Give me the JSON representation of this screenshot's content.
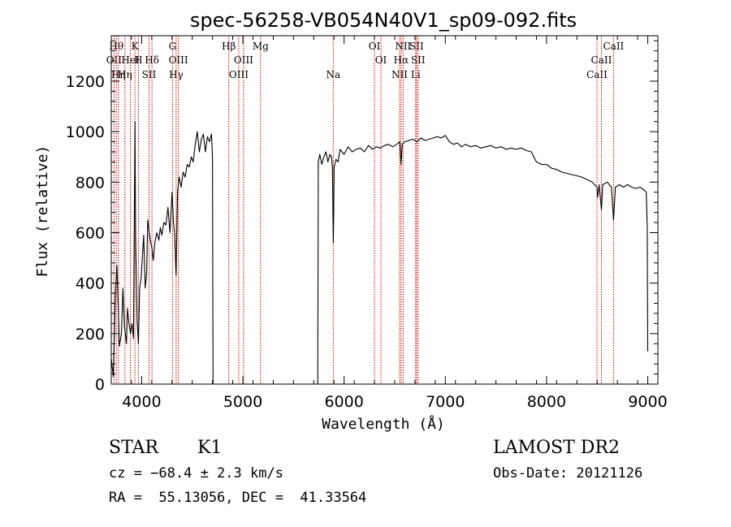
{
  "chart_data": {
    "type": "line",
    "title": "spec-56258-VB054N40V1_sp09-092.fits",
    "xlabel": "Wavelength (Å)",
    "ylabel": "Flux (relative)",
    "xlim": [
      3700,
      9100
    ],
    "ylim": [
      0,
      1380
    ],
    "x_ticks": [
      4000,
      5000,
      6000,
      7000,
      8000,
      9000
    ],
    "x_tick_labels": [
      "4000",
      "5000",
      "6000",
      "7000",
      "8000",
      "9000"
    ],
    "y_ticks": [
      0,
      200,
      400,
      600,
      800,
      1000,
      1200
    ],
    "y_tick_labels": [
      "0",
      "200",
      "400",
      "600",
      "800",
      "1000",
      "1200"
    ],
    "grid": false,
    "line_color": "#000000",
    "marker_color": "#cc0000",
    "spectrum": [
      [
        3700,
        100
      ],
      [
        3720,
        30
      ],
      [
        3740,
        350
      ],
      [
        3755,
        470
      ],
      [
        3770,
        300
      ],
      [
        3780,
        150
      ],
      [
        3800,
        200
      ],
      [
        3815,
        380
      ],
      [
        3830,
        230
      ],
      [
        3850,
        160
      ],
      [
        3860,
        300
      ],
      [
        3875,
        240
      ],
      [
        3890,
        200
      ],
      [
        3905,
        240
      ],
      [
        3920,
        180
      ],
      [
        3934,
        1040
      ],
      [
        3940,
        600
      ],
      [
        3955,
        250
      ],
      [
        3968,
        160
      ],
      [
        3980,
        380
      ],
      [
        3995,
        420
      ],
      [
        4010,
        520
      ],
      [
        4020,
        590
      ],
      [
        4035,
        380
      ],
      [
        4050,
        440
      ],
      [
        4060,
        650
      ],
      [
        4075,
        600
      ],
      [
        4090,
        560
      ],
      [
        4101,
        540
      ],
      [
        4115,
        490
      ],
      [
        4130,
        560
      ],
      [
        4150,
        600
      ],
      [
        4170,
        570
      ],
      [
        4185,
        620
      ],
      [
        4200,
        590
      ],
      [
        4220,
        640
      ],
      [
        4240,
        630
      ],
      [
        4260,
        700
      ],
      [
        4280,
        600
      ],
      [
        4300,
        760
      ],
      [
        4315,
        640
      ],
      [
        4325,
        600
      ],
      [
        4340,
        430
      ],
      [
        4355,
        760
      ],
      [
        4370,
        820
      ],
      [
        4390,
        780
      ],
      [
        4410,
        840
      ],
      [
        4430,
        820
      ],
      [
        4450,
        870
      ],
      [
        4470,
        860
      ],
      [
        4490,
        900
      ],
      [
        4510,
        880
      ],
      [
        4530,
        950
      ],
      [
        4550,
        1000
      ],
      [
        4570,
        920
      ],
      [
        4590,
        970
      ],
      [
        4610,
        990
      ],
      [
        4630,
        920
      ],
      [
        4650,
        980
      ],
      [
        4670,
        960
      ],
      [
        4690,
        990
      ],
      [
        4700,
        900
      ],
      [
        4705,
        0
      ],
      [
        5720,
        0
      ],
      [
        5740,
        0
      ],
      [
        5745,
        880
      ],
      [
        5760,
        910
      ],
      [
        5780,
        870
      ],
      [
        5800,
        900
      ],
      [
        5820,
        920
      ],
      [
        5840,
        880
      ],
      [
        5860,
        910
      ],
      [
        5875,
        900
      ],
      [
        5885,
        860
      ],
      [
        5890,
        670
      ],
      [
        5894,
        560
      ],
      [
        5898,
        680
      ],
      [
        5902,
        860
      ],
      [
        5920,
        890
      ],
      [
        5940,
        880
      ],
      [
        5960,
        930
      ],
      [
        6000,
        910
      ],
      [
        6040,
        940
      ],
      [
        6080,
        920
      ],
      [
        6120,
        930
      ],
      [
        6160,
        935
      ],
      [
        6200,
        920
      ],
      [
        6240,
        945
      ],
      [
        6280,
        930
      ],
      [
        6320,
        940
      ],
      [
        6360,
        935
      ],
      [
        6400,
        945
      ],
      [
        6440,
        950
      ],
      [
        6480,
        940
      ],
      [
        6520,
        950
      ],
      [
        6550,
        960
      ],
      [
        6563,
        870
      ],
      [
        6575,
        950
      ],
      [
        6600,
        960
      ],
      [
        6640,
        965
      ],
      [
        6680,
        970
      ],
      [
        6720,
        960
      ],
      [
        6760,
        975
      ],
      [
        6800,
        965
      ],
      [
        6840,
        970
      ],
      [
        6880,
        975
      ],
      [
        6920,
        980
      ],
      [
        6960,
        975
      ],
      [
        7000,
        985
      ],
      [
        7040,
        960
      ],
      [
        7080,
        950
      ],
      [
        7120,
        955
      ],
      [
        7160,
        940
      ],
      [
        7200,
        950
      ],
      [
        7250,
        940
      ],
      [
        7300,
        945
      ],
      [
        7350,
        935
      ],
      [
        7400,
        940
      ],
      [
        7450,
        945
      ],
      [
        7500,
        935
      ],
      [
        7550,
        940
      ],
      [
        7600,
        930
      ],
      [
        7650,
        935
      ],
      [
        7700,
        930
      ],
      [
        7750,
        935
      ],
      [
        7800,
        925
      ],
      [
        7850,
        920
      ],
      [
        7900,
        880
      ],
      [
        7950,
        870
      ],
      [
        8000,
        870
      ],
      [
        8050,
        855
      ],
      [
        8100,
        850
      ],
      [
        8150,
        840
      ],
      [
        8200,
        835
      ],
      [
        8250,
        830
      ],
      [
        8300,
        825
      ],
      [
        8350,
        820
      ],
      [
        8400,
        810
      ],
      [
        8450,
        800
      ],
      [
        8498,
        780
      ],
      [
        8505,
        740
      ],
      [
        8520,
        790
      ],
      [
        8542,
        690
      ],
      [
        8555,
        790
      ],
      [
        8600,
        800
      ],
      [
        8640,
        780
      ],
      [
        8662,
        650
      ],
      [
        8680,
        780
      ],
      [
        8720,
        790
      ],
      [
        8760,
        780
      ],
      [
        8800,
        790
      ],
      [
        8840,
        780
      ],
      [
        8880,
        775
      ],
      [
        8920,
        780
      ],
      [
        8960,
        770
      ],
      [
        8985,
        760
      ],
      [
        8995,
        620
      ],
      [
        9000,
        130
      ]
    ],
    "line_markers": [
      {
        "x": 3727,
        "label": "OII",
        "row": 2
      },
      {
        "x": 3750,
        "label": "Hθ",
        "row": 1
      },
      {
        "x": 3771,
        "label": "Hη",
        "row": 3
      },
      {
        "x": 3835,
        "label": "Hη",
        "row": 3
      },
      {
        "x": 3889,
        "label": "HeI",
        "row": 2
      },
      {
        "x": 3934,
        "label": "K",
        "row": 1
      },
      {
        "x": 3968,
        "label": "H",
        "row": 2
      },
      {
        "x": 4073,
        "label": "SII",
        "row": 3
      },
      {
        "x": 4102,
        "label": "Hδ",
        "row": 2
      },
      {
        "x": 4305,
        "label": "G",
        "row": 1
      },
      {
        "x": 4341,
        "label": "Hγ",
        "row": 3
      },
      {
        "x": 4363,
        "label": "OIII",
        "row": 2
      },
      {
        "x": 4861,
        "label": "Hβ",
        "row": 1
      },
      {
        "x": 4959,
        "label": "OIII",
        "row": 3
      },
      {
        "x": 5007,
        "label": "OIII",
        "row": 2
      },
      {
        "x": 5175,
        "label": "Mg",
        "row": 1
      },
      {
        "x": 5893,
        "label": "Na",
        "row": 3
      },
      {
        "x": 6300,
        "label": "OI",
        "row": 1
      },
      {
        "x": 6364,
        "label": "OI",
        "row": 2
      },
      {
        "x": 6548,
        "label": "NII",
        "row": 3
      },
      {
        "x": 6563,
        "label": "Hα",
        "row": 2
      },
      {
        "x": 6583,
        "label": "NII",
        "row": 1
      },
      {
        "x": 6707,
        "label": "Li",
        "row": 3
      },
      {
        "x": 6716,
        "label": "SII",
        "row": 1
      },
      {
        "x": 6731,
        "label": "SII",
        "row": 2
      },
      {
        "x": 8498,
        "label": "CaII",
        "row": 3
      },
      {
        "x": 8542,
        "label": "CaII",
        "row": 2
      },
      {
        "x": 8662,
        "label": "CaII",
        "row": 1
      }
    ]
  },
  "info": {
    "class": "STAR",
    "subclass": "K1",
    "survey": "LAMOST DR2",
    "cz": "cz = −68.4 ± 2.3 km/s",
    "obs_date": "Obs-Date: 20121126",
    "coords": "RA =  55.13056, DEC =  41.33564"
  }
}
